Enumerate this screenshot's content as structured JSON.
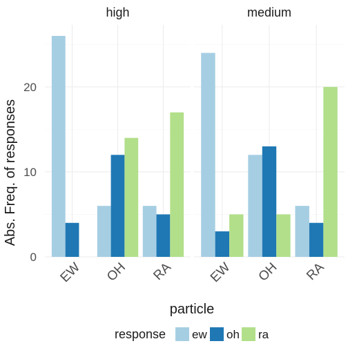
{
  "chart_data": {
    "type": "bar",
    "facet_variable": "",
    "facets": [
      "high",
      "medium"
    ],
    "categories": [
      "EW",
      "OH",
      "RA"
    ],
    "series": [
      {
        "name": "ew",
        "color": "#a6cee3",
        "values": {
          "high": [
            26,
            6,
            6
          ],
          "medium": [
            24,
            12,
            6
          ]
        }
      },
      {
        "name": "oh",
        "color": "#1f78b4",
        "values": {
          "high": [
            4,
            12,
            5
          ],
          "medium": [
            3,
            13,
            4
          ]
        }
      },
      {
        "name": "ra",
        "color": "#b2df8a",
        "values": {
          "high": [
            0,
            14,
            17
          ],
          "medium": [
            5,
            5,
            20
          ]
        }
      }
    ],
    "xlabel": "particle",
    "ylabel": "Abs. Freq. of responses",
    "ylim": [
      0,
      27.3
    ],
    "yticks": [
      0,
      10,
      20
    ],
    "grid": true,
    "legend": {
      "title": "response",
      "position": "bottom"
    }
  }
}
